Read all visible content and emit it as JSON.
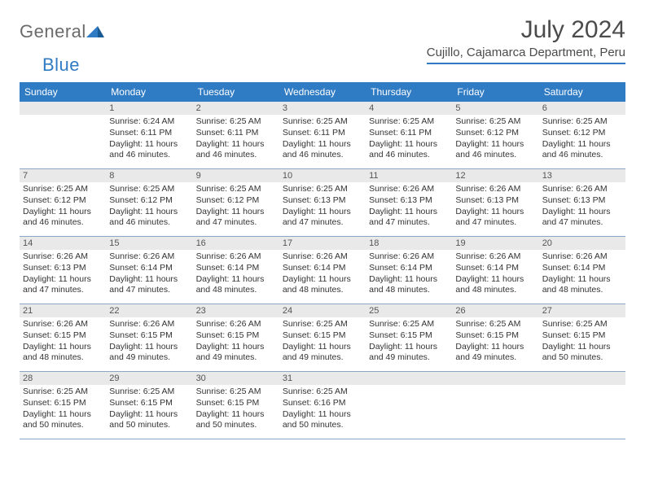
{
  "logo": {
    "general": "General",
    "blue": "Blue"
  },
  "title": "July 2024",
  "location": "Cujillo, Cajamarca Department, Peru",
  "day_headers": [
    "Sunday",
    "Monday",
    "Tuesday",
    "Wednesday",
    "Thursday",
    "Friday",
    "Saturday"
  ],
  "colors": {
    "accent": "#2f7bc4",
    "header_text": "#ffffff",
    "grey_band": "#e9e9e9",
    "body_text": "#333333",
    "row_border": "#8aa8c4"
  },
  "weeks": [
    [
      {
        "day": "",
        "blank": true
      },
      {
        "day": "1",
        "sunrise": "Sunrise: 6:24 AM",
        "sunset": "Sunset: 6:11 PM",
        "daylight": "Daylight: 11 hours and 46 minutes."
      },
      {
        "day": "2",
        "sunrise": "Sunrise: 6:25 AM",
        "sunset": "Sunset: 6:11 PM",
        "daylight": "Daylight: 11 hours and 46 minutes."
      },
      {
        "day": "3",
        "sunrise": "Sunrise: 6:25 AM",
        "sunset": "Sunset: 6:11 PM",
        "daylight": "Daylight: 11 hours and 46 minutes."
      },
      {
        "day": "4",
        "sunrise": "Sunrise: 6:25 AM",
        "sunset": "Sunset: 6:11 PM",
        "daylight": "Daylight: 11 hours and 46 minutes."
      },
      {
        "day": "5",
        "sunrise": "Sunrise: 6:25 AM",
        "sunset": "Sunset: 6:12 PM",
        "daylight": "Daylight: 11 hours and 46 minutes."
      },
      {
        "day": "6",
        "sunrise": "Sunrise: 6:25 AM",
        "sunset": "Sunset: 6:12 PM",
        "daylight": "Daylight: 11 hours and 46 minutes."
      }
    ],
    [
      {
        "day": "7",
        "sunrise": "Sunrise: 6:25 AM",
        "sunset": "Sunset: 6:12 PM",
        "daylight": "Daylight: 11 hours and 46 minutes."
      },
      {
        "day": "8",
        "sunrise": "Sunrise: 6:25 AM",
        "sunset": "Sunset: 6:12 PM",
        "daylight": "Daylight: 11 hours and 46 minutes."
      },
      {
        "day": "9",
        "sunrise": "Sunrise: 6:25 AM",
        "sunset": "Sunset: 6:12 PM",
        "daylight": "Daylight: 11 hours and 47 minutes."
      },
      {
        "day": "10",
        "sunrise": "Sunrise: 6:25 AM",
        "sunset": "Sunset: 6:13 PM",
        "daylight": "Daylight: 11 hours and 47 minutes."
      },
      {
        "day": "11",
        "sunrise": "Sunrise: 6:26 AM",
        "sunset": "Sunset: 6:13 PM",
        "daylight": "Daylight: 11 hours and 47 minutes."
      },
      {
        "day": "12",
        "sunrise": "Sunrise: 6:26 AM",
        "sunset": "Sunset: 6:13 PM",
        "daylight": "Daylight: 11 hours and 47 minutes."
      },
      {
        "day": "13",
        "sunrise": "Sunrise: 6:26 AM",
        "sunset": "Sunset: 6:13 PM",
        "daylight": "Daylight: 11 hours and 47 minutes."
      }
    ],
    [
      {
        "day": "14",
        "sunrise": "Sunrise: 6:26 AM",
        "sunset": "Sunset: 6:13 PM",
        "daylight": "Daylight: 11 hours and 47 minutes."
      },
      {
        "day": "15",
        "sunrise": "Sunrise: 6:26 AM",
        "sunset": "Sunset: 6:14 PM",
        "daylight": "Daylight: 11 hours and 47 minutes."
      },
      {
        "day": "16",
        "sunrise": "Sunrise: 6:26 AM",
        "sunset": "Sunset: 6:14 PM",
        "daylight": "Daylight: 11 hours and 48 minutes."
      },
      {
        "day": "17",
        "sunrise": "Sunrise: 6:26 AM",
        "sunset": "Sunset: 6:14 PM",
        "daylight": "Daylight: 11 hours and 48 minutes."
      },
      {
        "day": "18",
        "sunrise": "Sunrise: 6:26 AM",
        "sunset": "Sunset: 6:14 PM",
        "daylight": "Daylight: 11 hours and 48 minutes."
      },
      {
        "day": "19",
        "sunrise": "Sunrise: 6:26 AM",
        "sunset": "Sunset: 6:14 PM",
        "daylight": "Daylight: 11 hours and 48 minutes."
      },
      {
        "day": "20",
        "sunrise": "Sunrise: 6:26 AM",
        "sunset": "Sunset: 6:14 PM",
        "daylight": "Daylight: 11 hours and 48 minutes."
      }
    ],
    [
      {
        "day": "21",
        "sunrise": "Sunrise: 6:26 AM",
        "sunset": "Sunset: 6:15 PM",
        "daylight": "Daylight: 11 hours and 48 minutes."
      },
      {
        "day": "22",
        "sunrise": "Sunrise: 6:26 AM",
        "sunset": "Sunset: 6:15 PM",
        "daylight": "Daylight: 11 hours and 49 minutes."
      },
      {
        "day": "23",
        "sunrise": "Sunrise: 6:26 AM",
        "sunset": "Sunset: 6:15 PM",
        "daylight": "Daylight: 11 hours and 49 minutes."
      },
      {
        "day": "24",
        "sunrise": "Sunrise: 6:25 AM",
        "sunset": "Sunset: 6:15 PM",
        "daylight": "Daylight: 11 hours and 49 minutes."
      },
      {
        "day": "25",
        "sunrise": "Sunrise: 6:25 AM",
        "sunset": "Sunset: 6:15 PM",
        "daylight": "Daylight: 11 hours and 49 minutes."
      },
      {
        "day": "26",
        "sunrise": "Sunrise: 6:25 AM",
        "sunset": "Sunset: 6:15 PM",
        "daylight": "Daylight: 11 hours and 49 minutes."
      },
      {
        "day": "27",
        "sunrise": "Sunrise: 6:25 AM",
        "sunset": "Sunset: 6:15 PM",
        "daylight": "Daylight: 11 hours and 50 minutes."
      }
    ],
    [
      {
        "day": "28",
        "sunrise": "Sunrise: 6:25 AM",
        "sunset": "Sunset: 6:15 PM",
        "daylight": "Daylight: 11 hours and 50 minutes."
      },
      {
        "day": "29",
        "sunrise": "Sunrise: 6:25 AM",
        "sunset": "Sunset: 6:15 PM",
        "daylight": "Daylight: 11 hours and 50 minutes."
      },
      {
        "day": "30",
        "sunrise": "Sunrise: 6:25 AM",
        "sunset": "Sunset: 6:15 PM",
        "daylight": "Daylight: 11 hours and 50 minutes."
      },
      {
        "day": "31",
        "sunrise": "Sunrise: 6:25 AM",
        "sunset": "Sunset: 6:16 PM",
        "daylight": "Daylight: 11 hours and 50 minutes."
      },
      {
        "day": "",
        "blank": true
      },
      {
        "day": "",
        "blank": true
      },
      {
        "day": "",
        "blank": true
      }
    ]
  ]
}
